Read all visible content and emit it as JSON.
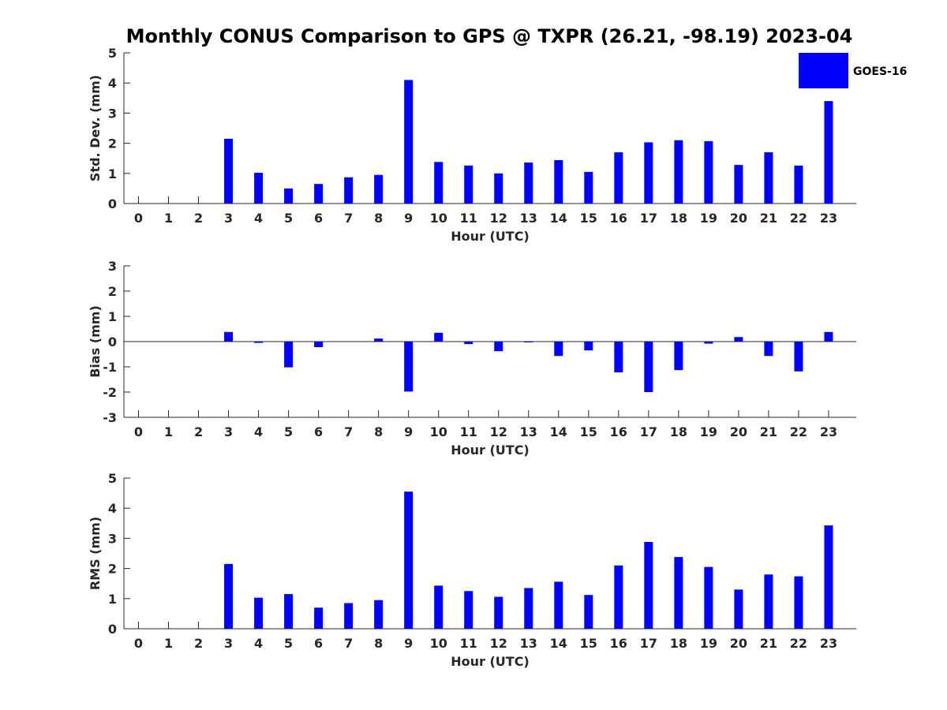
{
  "title": "Monthly CONUS Comparison to GPS @ TXPR (26.21, -98.19) 2023-04",
  "legend": {
    "label": "GOES-16",
    "color": "#0000ff",
    "placement": "top-right"
  },
  "bar_color": "#0000ff",
  "chart_data": [
    {
      "type": "bar",
      "categories": [
        "0",
        "1",
        "2",
        "3",
        "4",
        "5",
        "6",
        "7",
        "8",
        "9",
        "10",
        "11",
        "12",
        "13",
        "14",
        "15",
        "16",
        "17",
        "18",
        "19",
        "20",
        "21",
        "22",
        "23"
      ],
      "series": [
        {
          "name": "GOES-16",
          "values": [
            null,
            null,
            null,
            2.15,
            1.02,
            0.5,
            0.65,
            0.87,
            0.95,
            4.1,
            1.38,
            1.26,
            1.0,
            1.36,
            1.44,
            1.05,
            1.7,
            2.03,
            2.1,
            2.07,
            1.28,
            1.7,
            1.26,
            3.4
          ]
        }
      ],
      "xlabel": "Hour (UTC)",
      "ylabel": "Std. Dev. (mm)",
      "ylim": [
        0,
        5
      ],
      "yticks": [
        "0",
        "1",
        "2",
        "3",
        "4",
        "5"
      ]
    },
    {
      "type": "bar",
      "categories": [
        "0",
        "1",
        "2",
        "3",
        "4",
        "5",
        "6",
        "7",
        "8",
        "9",
        "10",
        "11",
        "12",
        "13",
        "14",
        "15",
        "16",
        "17",
        "18",
        "19",
        "20",
        "21",
        "22",
        "23"
      ],
      "series": [
        {
          "name": "GOES-16",
          "values": [
            null,
            null,
            null,
            0.38,
            -0.05,
            -1.02,
            -0.22,
            0.0,
            0.12,
            -1.98,
            0.35,
            -0.1,
            -0.38,
            -0.03,
            -0.57,
            -0.35,
            -1.22,
            -2.0,
            -1.13,
            -0.08,
            0.18,
            -0.57,
            -1.18,
            0.38
          ]
        }
      ],
      "xlabel": "Hour (UTC)",
      "ylabel": "Bias (mm)",
      "ylim": [
        -3,
        3
      ],
      "yticks": [
        "-3",
        "-2",
        "-1",
        "0",
        "1",
        "2",
        "3"
      ]
    },
    {
      "type": "bar",
      "categories": [
        "0",
        "1",
        "2",
        "3",
        "4",
        "5",
        "6",
        "7",
        "8",
        "9",
        "10",
        "11",
        "12",
        "13",
        "14",
        "15",
        "16",
        "17",
        "18",
        "19",
        "20",
        "21",
        "22",
        "23"
      ],
      "series": [
        {
          "name": "GOES-16",
          "values": [
            null,
            null,
            null,
            2.15,
            1.03,
            1.15,
            0.7,
            0.85,
            0.95,
            4.55,
            1.43,
            1.25,
            1.06,
            1.35,
            1.56,
            1.12,
            2.1,
            2.88,
            2.38,
            2.05,
            1.3,
            1.8,
            1.74,
            3.43
          ]
        }
      ],
      "xlabel": "Hour (UTC)",
      "ylabel": "RMS (mm)",
      "ylim": [
        0,
        5
      ],
      "yticks": [
        "0",
        "1",
        "2",
        "3",
        "4",
        "5"
      ]
    }
  ]
}
